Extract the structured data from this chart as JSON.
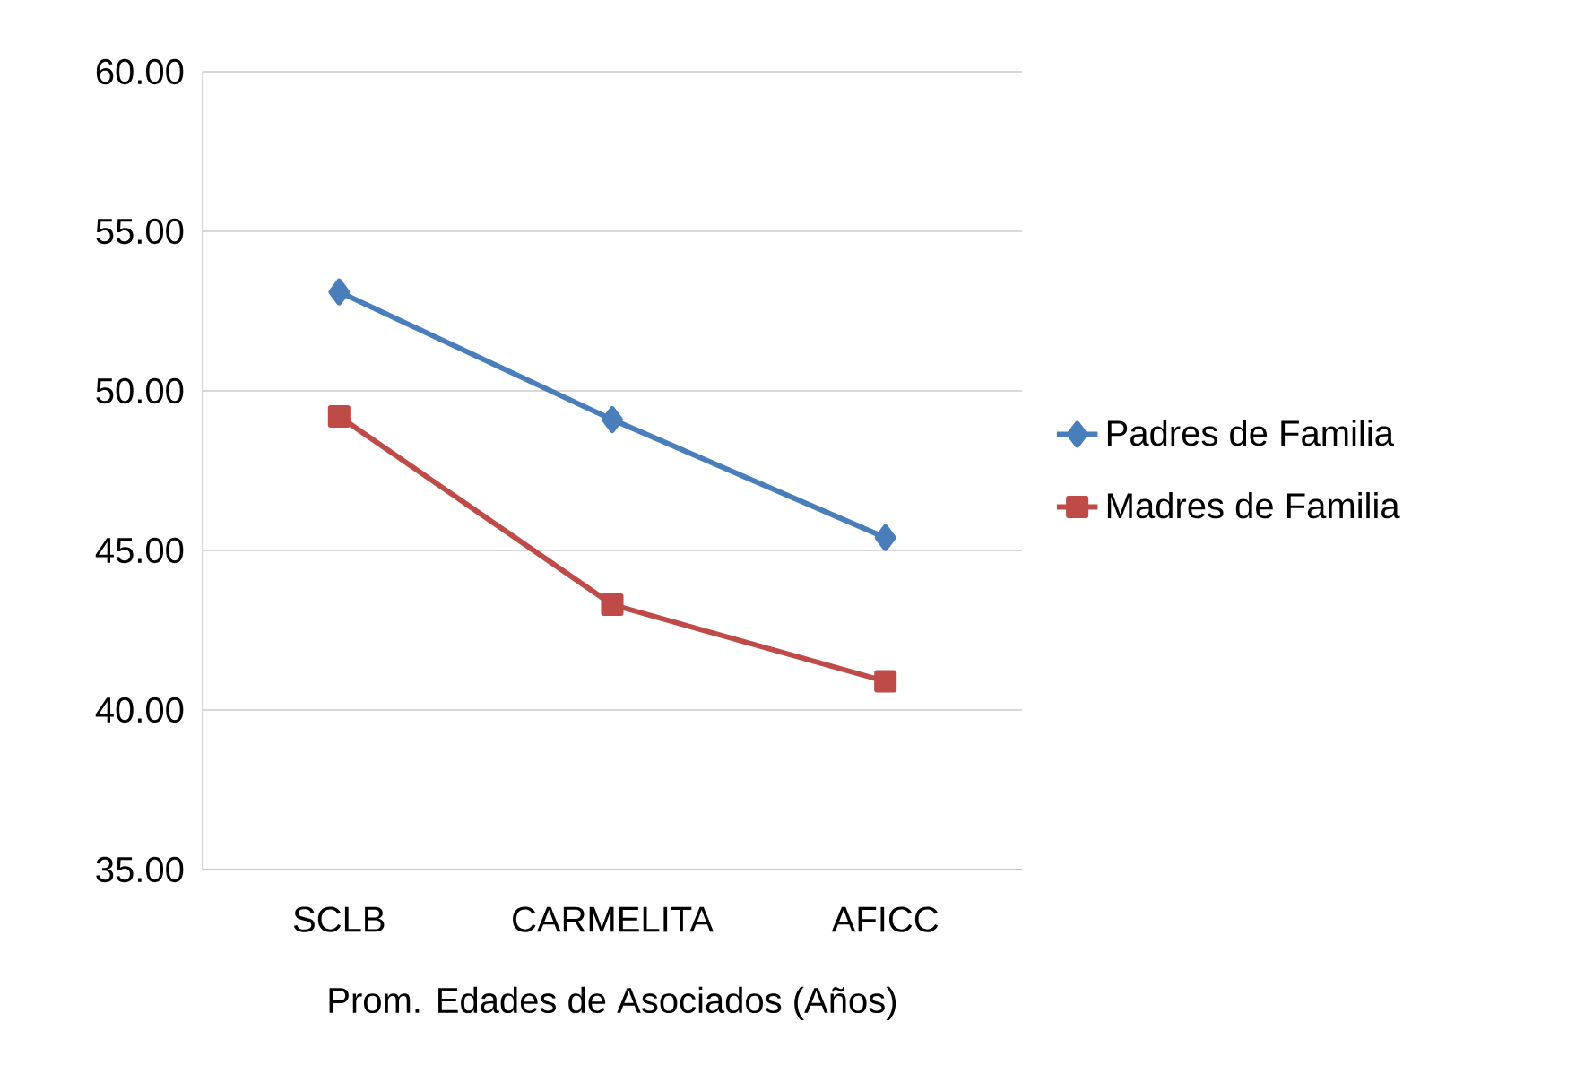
{
  "chart_data": {
    "type": "line",
    "xlabel": "Prom. Edades de Asociados (Años)",
    "categories": [
      "SCLB",
      "CARMELITA",
      "AFICC"
    ],
    "series": [
      {
        "name": "Padres de Familia",
        "color": "#4a7ebb",
        "marker": "diamond",
        "values": [
          53.1,
          49.1,
          45.4
        ]
      },
      {
        "name": "Madres de Familia",
        "color": "#be4b48",
        "marker": "square",
        "values": [
          49.2,
          43.3,
          40.9
        ]
      }
    ],
    "ylim": [
      35,
      60
    ],
    "yticks": [
      {
        "value": 35,
        "label": "35.00"
      },
      {
        "value": 40,
        "label": "40.00"
      },
      {
        "value": 45,
        "label": "45.00"
      },
      {
        "value": 50,
        "label": "50.00"
      },
      {
        "value": 55,
        "label": "55.00"
      },
      {
        "value": 60,
        "label": "60.00"
      }
    ],
    "grid": "y",
    "legend": "right"
  }
}
